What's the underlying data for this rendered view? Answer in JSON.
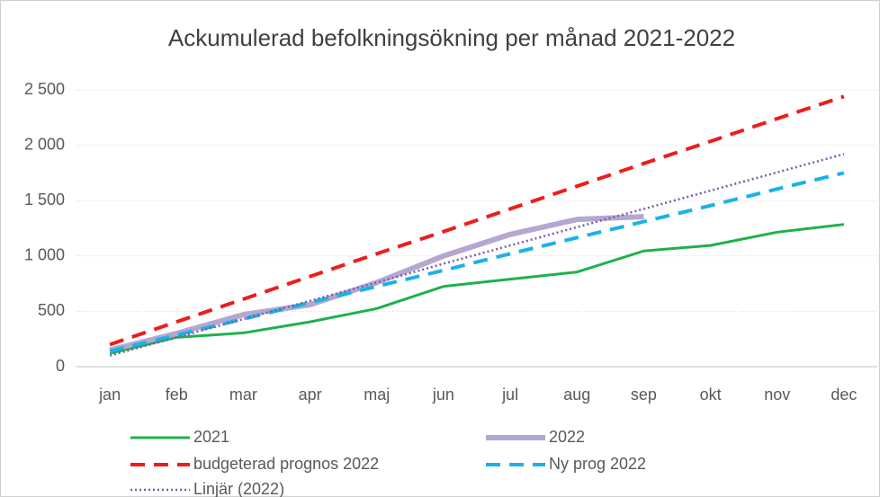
{
  "chart_data": {
    "type": "line",
    "title": "Ackumulerad befolkningsökning per månad 2021-2022",
    "categories": [
      "jan",
      "feb",
      "mar",
      "apr",
      "maj",
      "jun",
      "jul",
      "aug",
      "sep",
      "okt",
      "nov",
      "dec"
    ],
    "series": [
      {
        "name": "2021",
        "color": "#1fb04c",
        "width": 3,
        "dash": "solid",
        "values": [
          120,
          265,
          305,
          405,
          525,
          725,
          790,
          855,
          1045,
          1095,
          1215,
          1285
        ]
      },
      {
        "name": "2022",
        "color": "#b4a7d0",
        "width": 6,
        "dash": "solid",
        "values": [
          150,
          300,
          470,
          560,
          760,
          1000,
          1195,
          1330,
          1355,
          null,
          null,
          null
        ]
      },
      {
        "name": "budgeterad prognos 2022",
        "color": "#ee1c1c",
        "width": 4,
        "dash": "dashed",
        "values": [
          200,
          405,
          610,
          815,
          1020,
          1220,
          1425,
          1630,
          1835,
          2035,
          2240,
          2440
        ]
      },
      {
        "name": "Ny prog 2022",
        "color": "#1ab2e8",
        "width": 4,
        "dash": "dashed",
        "values": [
          140,
          285,
          430,
          580,
          725,
          870,
          1020,
          1165,
          1310,
          1455,
          1605,
          1750
        ]
      },
      {
        "name": "Linjär (2022)",
        "color": "#7e5ba6",
        "width": 2.5,
        "dash": "dotted",
        "values": [
          100,
          265,
          430,
          595,
          760,
          930,
          1095,
          1260,
          1425,
          1590,
          1755,
          1920
        ]
      }
    ],
    "ylim": [
      0,
      2500
    ],
    "yticks": [
      0,
      500,
      {
        "value": 1000,
        "label": "1 000"
      },
      {
        "value": 1500,
        "label": "1 500"
      },
      {
        "value": 2000,
        "label": "2 000"
      },
      {
        "value": 2500,
        "label": "2 500"
      }
    ],
    "grid": true,
    "legend": "bottom"
  }
}
